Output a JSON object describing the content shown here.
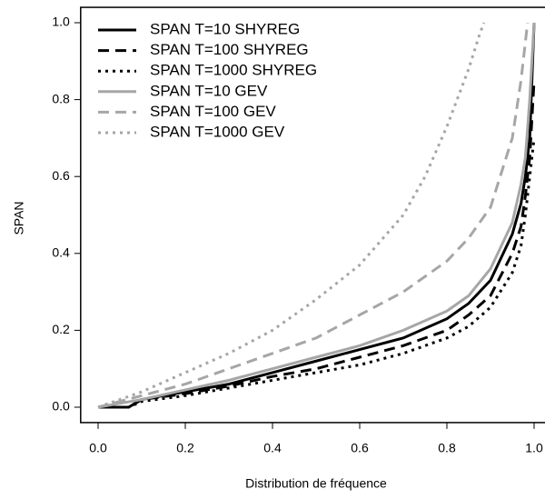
{
  "chart_data": {
    "type": "line",
    "xlabel": "Distribution de fréquence",
    "ylabel": "SPAN",
    "xlim": [
      0,
      1
    ],
    "ylim": [
      0,
      1
    ],
    "xticks": [
      {
        "value": 0,
        "label": "0.0"
      },
      0.2,
      0.4,
      0.6,
      0.8,
      {
        "value": 1,
        "label": "1.0"
      }
    ],
    "yticks": [
      {
        "value": 0,
        "label": "0.0"
      },
      0.2,
      0.4,
      0.6,
      0.8,
      {
        "value": 1,
        "label": "1.0"
      }
    ],
    "legend": "top-left",
    "series": [
      {
        "name": "SPAN T=10 SHYREG",
        "color": "#000000",
        "dash": "solid",
        "x": [
          0,
          0.07,
          0.1,
          0.2,
          0.3,
          0.4,
          0.5,
          0.6,
          0.7,
          0.8,
          0.85,
          0.9,
          0.95,
          0.97,
          0.98,
          0.99,
          1.0
        ],
        "values": [
          0,
          0,
          0.02,
          0.04,
          0.06,
          0.09,
          0.12,
          0.15,
          0.18,
          0.23,
          0.27,
          0.33,
          0.45,
          0.53,
          0.6,
          0.7,
          1.0
        ]
      },
      {
        "name": "SPAN T=100 SHYREG",
        "color": "#000000",
        "dash": "dashed",
        "x": [
          0,
          0.07,
          0.1,
          0.2,
          0.3,
          0.4,
          0.5,
          0.6,
          0.7,
          0.8,
          0.85,
          0.9,
          0.95,
          0.97,
          0.98,
          0.99,
          1.0
        ],
        "values": [
          0,
          0,
          0.02,
          0.035,
          0.055,
          0.08,
          0.1,
          0.13,
          0.16,
          0.2,
          0.24,
          0.29,
          0.4,
          0.47,
          0.55,
          0.65,
          0.85
        ]
      },
      {
        "name": "SPAN T=1000 SHYREG",
        "color": "#000000",
        "dash": "dotted",
        "x": [
          0,
          0.07,
          0.1,
          0.2,
          0.3,
          0.4,
          0.5,
          0.6,
          0.7,
          0.8,
          0.85,
          0.9,
          0.95,
          0.97,
          0.98,
          0.99,
          1.0
        ],
        "values": [
          0,
          0,
          0.015,
          0.03,
          0.05,
          0.07,
          0.09,
          0.11,
          0.14,
          0.18,
          0.21,
          0.26,
          0.35,
          0.42,
          0.5,
          0.6,
          0.7
        ]
      },
      {
        "name": "SPAN T=10 GEV",
        "color": "#a6a6a6",
        "dash": "solid",
        "x": [
          0,
          0.1,
          0.2,
          0.3,
          0.4,
          0.5,
          0.6,
          0.7,
          0.8,
          0.85,
          0.9,
          0.95,
          0.97,
          0.98,
          0.99,
          1.0
        ],
        "values": [
          0,
          0.02,
          0.045,
          0.07,
          0.1,
          0.13,
          0.16,
          0.2,
          0.25,
          0.29,
          0.36,
          0.48,
          0.58,
          0.65,
          0.8,
          1.0
        ]
      },
      {
        "name": "SPAN T=100 GEV",
        "color": "#a6a6a6",
        "dash": "dashed",
        "x": [
          0,
          0.1,
          0.2,
          0.3,
          0.4,
          0.5,
          0.6,
          0.7,
          0.8,
          0.85,
          0.9,
          0.95,
          0.97,
          0.98,
          0.985
        ],
        "values": [
          0,
          0.03,
          0.06,
          0.1,
          0.14,
          0.18,
          0.24,
          0.3,
          0.38,
          0.44,
          0.52,
          0.7,
          0.85,
          0.95,
          1.0
        ]
      },
      {
        "name": "SPAN T=1000 GEV",
        "color": "#a6a6a6",
        "dash": "dotted",
        "x": [
          0,
          0.1,
          0.2,
          0.3,
          0.4,
          0.5,
          0.6,
          0.7,
          0.75,
          0.8,
          0.85,
          0.875,
          0.885
        ],
        "values": [
          0,
          0.04,
          0.09,
          0.14,
          0.2,
          0.28,
          0.37,
          0.5,
          0.6,
          0.73,
          0.88,
          0.97,
          1.0
        ]
      }
    ]
  }
}
